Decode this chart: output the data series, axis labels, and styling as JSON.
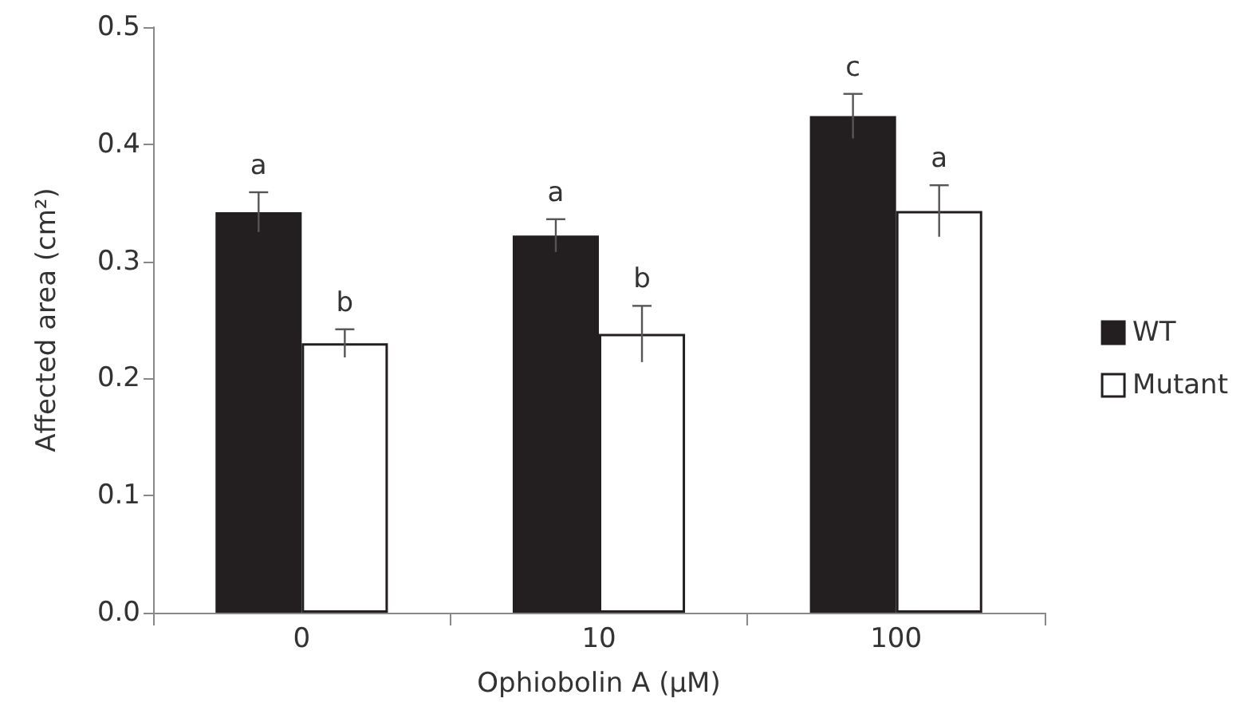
{
  "chart_data": {
    "type": "bar",
    "xlabel": "Ophiobolin A (μM)",
    "ylabel": "Affected area (cm²)",
    "categories": [
      "0",
      "10",
      "100"
    ],
    "series": [
      {
        "name": "WT",
        "color": "#231f20",
        "values": [
          0.342,
          0.322,
          0.424
        ],
        "errors": [
          0.017,
          0.014,
          0.019
        ]
      },
      {
        "name": "Mutant",
        "color": "#ffffff",
        "values": [
          0.23,
          0.238,
          0.343
        ],
        "errors": [
          0.012,
          0.024,
          0.022
        ]
      }
    ],
    "ylim": [
      0,
      0.5
    ],
    "yticks": [
      {
        "value": 0,
        "label": "0.0"
      },
      {
        "value": 0.1,
        "label": "0.1"
      },
      {
        "value": 0.2,
        "label": "0.2"
      },
      {
        "value": 0.3,
        "label": "0.3"
      },
      {
        "value": 0.4,
        "label": "0.4"
      },
      {
        "value": 0.5,
        "label": "0.5"
      }
    ],
    "annotations": [
      {
        "text": "a",
        "x": "0",
        "y": 0.342
      },
      {
        "text": "b",
        "x": "0",
        "y": 0.23
      },
      {
        "text": "a",
        "x": "10",
        "y": 0.322
      },
      {
        "text": "b",
        "x": "10",
        "y": 0.238
      },
      {
        "text": "c",
        "x": "100",
        "y": 0.424
      },
      {
        "text": "a",
        "x": "100",
        "y": 0.343
      }
    ],
    "grid": false,
    "legend": "right"
  }
}
